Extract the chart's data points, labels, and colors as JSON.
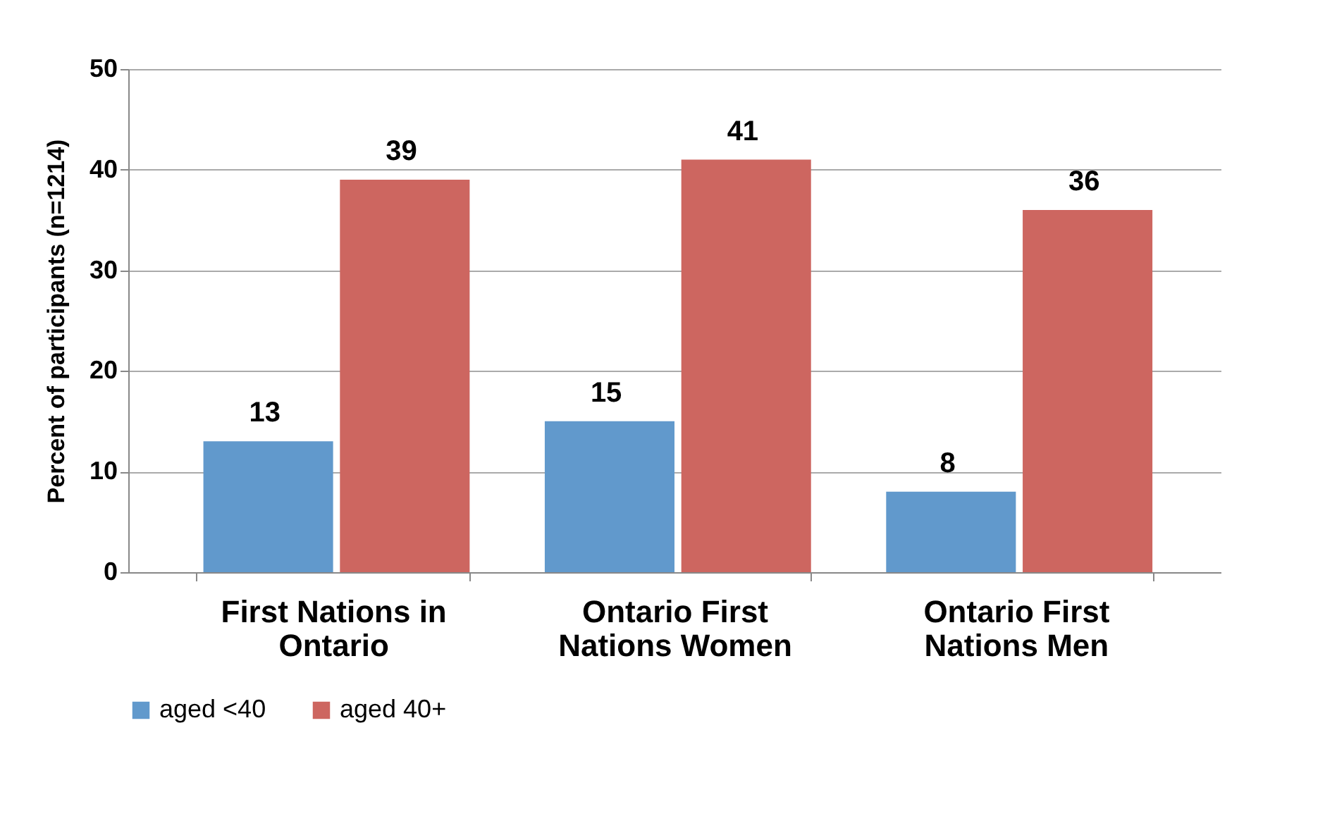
{
  "chart_data": {
    "type": "bar",
    "ylabel": "Percent of participants (n=1214)",
    "categories": [
      "First Nations in Ontario",
      "Ontario First Nations Women",
      "Ontario First Nations Men"
    ],
    "series": [
      {
        "name": "aged <40",
        "color": "#6199cc",
        "values": [
          13,
          15,
          8
        ]
      },
      {
        "name": "aged 40+",
        "color": "#cd6660",
        "values": [
          39,
          41,
          36
        ]
      }
    ],
    "ylim": [
      0,
      50
    ],
    "yticks": [
      0,
      10,
      20,
      30,
      40,
      50
    ],
    "grid": "y",
    "legend": "bottom",
    "data_labels": true
  }
}
